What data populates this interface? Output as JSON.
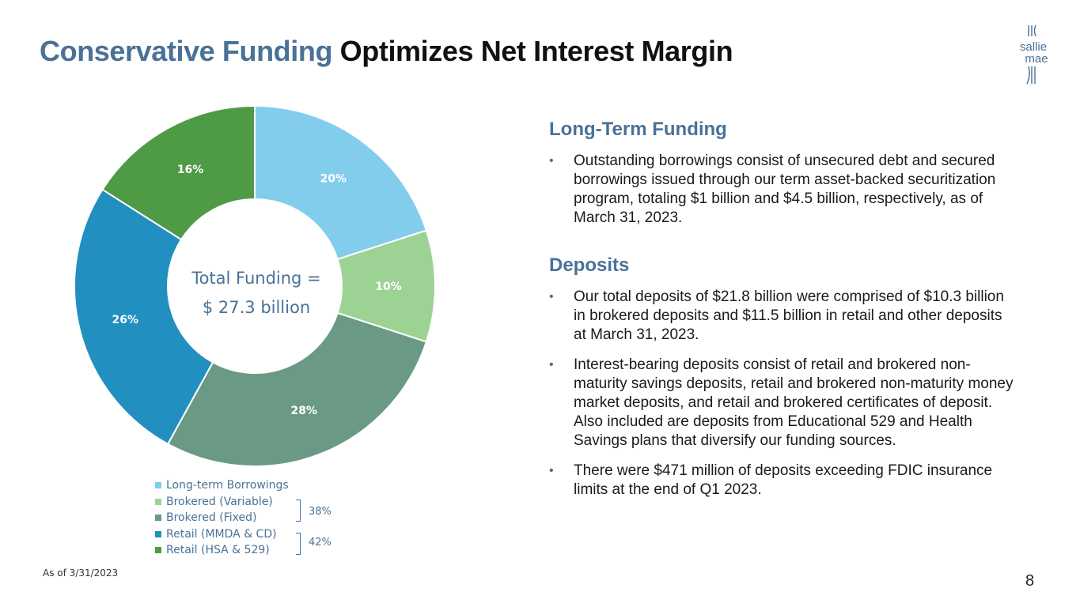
{
  "title": {
    "accent": "Conservative Funding",
    "rest": "Optimizes Net Interest Margin"
  },
  "logo": {
    "line1": "sallie",
    "line2": "mae"
  },
  "chart_data": {
    "type": "pie",
    "donut": true,
    "center_label": [
      "Total Funding =",
      "$ 27.3 billion"
    ],
    "categories": [
      "Long-term Borrowings",
      "Brokered (Variable)",
      "Brokered (Fixed)",
      "Retail (MMDA & CD)",
      "Retail (HSA & 529)"
    ],
    "values": [
      20,
      10,
      28,
      26,
      16
    ],
    "labels": [
      "20%",
      "10%",
      "28%",
      "26%",
      "16%"
    ],
    "colors": [
      "#82cdec",
      "#9dd295",
      "#6a9a86",
      "#2190c0",
      "#4f9a45"
    ],
    "groups": [
      {
        "label": "38%",
        "members": [
          "Brokered (Variable)",
          "Brokered (Fixed)"
        ]
      },
      {
        "label": "42%",
        "members": [
          "Retail (MMDA & CD)",
          "Retail (HSA & 529)"
        ]
      }
    ]
  },
  "sections": [
    {
      "heading": "Long-Term Funding",
      "bullets": [
        "Outstanding borrowings consist of unsecured debt and secured borrowings issued through our term asset-backed securitization program, totaling $1 billion and $4.5 billion, respectively, as of March 31, 2023."
      ]
    },
    {
      "heading": "Deposits",
      "bullets": [
        "Our total deposits of $21.8 billion were comprised of $10.3 billion in brokered deposits and $11.5 billion in retail and other deposits at March 31, 2023.",
        "Interest-bearing deposits consist of retail and brokered non-maturity savings deposits, retail and brokered non-maturity money market deposits, and retail and brokered certificates of deposit. Also included are deposits from Educational 529 and Health Savings plans that diversify our funding sources.",
        "There were $471 million of deposits exceeding FDIC insurance limits at the end of Q1 2023."
      ]
    }
  ],
  "bullet_glyph": "•",
  "footnote": "As of 3/31/2023",
  "page_number": "8"
}
